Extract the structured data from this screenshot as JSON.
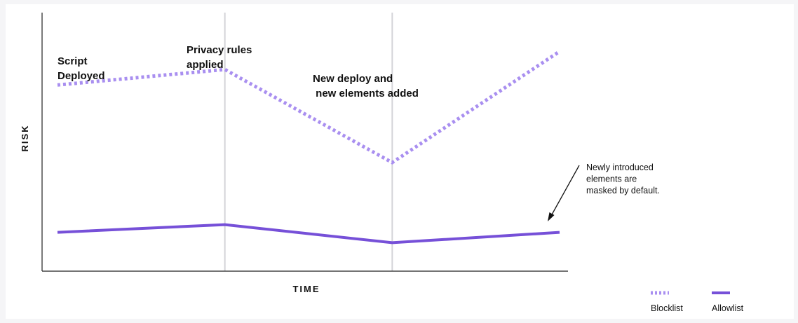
{
  "chart_data": {
    "type": "line",
    "title": "",
    "xlabel": "TIME",
    "ylabel": "RISK",
    "grid": false,
    "x": [
      0,
      1,
      2,
      3
    ],
    "ylim": [
      0,
      100
    ],
    "series": [
      {
        "name": "Blocklist",
        "style": "dotted",
        "color": "#a98ff0",
        "values": [
          72,
          78,
          42,
          85
        ]
      },
      {
        "name": "Allowlist",
        "style": "solid",
        "color": "#7650d8",
        "values": [
          15,
          18,
          11,
          15
        ]
      }
    ],
    "phase_markers": [
      {
        "x": 1,
        "label_lines": [
          "Privacy rules",
          "applied"
        ]
      },
      {
        "x": 2,
        "label_lines": [
          "New deploy and",
          " new elements added"
        ]
      }
    ],
    "start_annotation": {
      "label_lines": [
        "Script",
        "Deployed"
      ]
    },
    "callout": {
      "label_lines": [
        "Newly introduced",
        "elements are",
        "masked by default."
      ],
      "points_to_series": "Allowlist",
      "points_to_x": 3
    },
    "legend": {
      "position": "bottom-right"
    }
  }
}
